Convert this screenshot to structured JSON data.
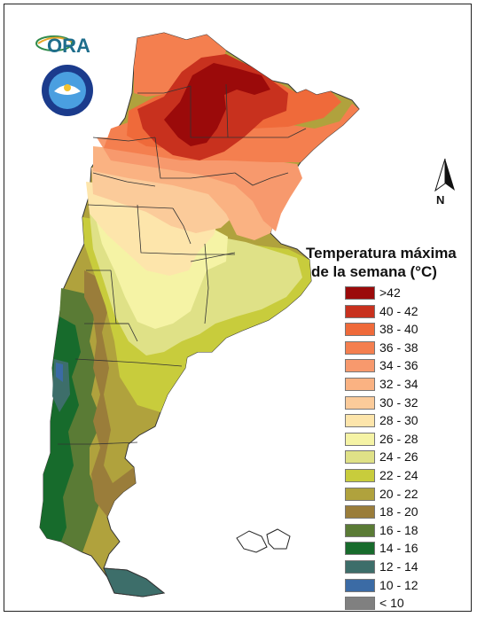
{
  "logo": {
    "ora_text": "ORA",
    "smn_ring_text": "SERVICIO METEOROLOGICO NACIONAL",
    "smn_bottom_text": "ARGENTINA"
  },
  "north_arrow": {
    "label": "N"
  },
  "legend": {
    "title_line1": "Temperatura máxima",
    "title_line2": "de la semana (°C)",
    "classes": [
      {
        "label": ">42",
        "color": "#9b0a0a"
      },
      {
        "label": "40 - 42",
        "color": "#c8311e"
      },
      {
        "label": "38 - 40",
        "color": "#ef6a3a"
      },
      {
        "label": "36 - 38",
        "color": "#f47f4f"
      },
      {
        "label": "34 - 36",
        "color": "#f7996d"
      },
      {
        "label": "32 - 34",
        "color": "#fab282"
      },
      {
        "label": "30 - 32",
        "color": "#fbcb9a"
      },
      {
        "label": "28 - 30",
        "color": "#fde5ab"
      },
      {
        "label": "26 - 28",
        "color": "#f5f3a5"
      },
      {
        "label": "24 - 26",
        "color": "#dfe187"
      },
      {
        "label": "22 - 24",
        "color": "#c8cc3c"
      },
      {
        "label": "20 - 22",
        "color": "#b0a23d"
      },
      {
        "label": "18 - 20",
        "color": "#9a7d3a"
      },
      {
        "label": "16 - 18",
        "color": "#5a7b35"
      },
      {
        "label": "14 - 16",
        "color": "#176b2c"
      },
      {
        "label": "12 - 14",
        "color": "#3d6e6a"
      },
      {
        "label": "10 - 12",
        "color": "#3b6ba5"
      },
      {
        "label": "< 10",
        "color": "#808080"
      }
    ]
  }
}
